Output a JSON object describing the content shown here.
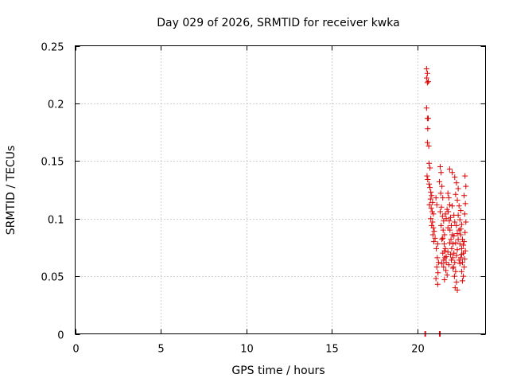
{
  "chart_data": {
    "type": "scatter",
    "title": "Day 029 of 2026, SRMTID for receiver kwka",
    "xlabel": "GPS time / hours",
    "ylabel": "SRMTID / TECUs",
    "xlim": [
      0,
      24
    ],
    "ylim": [
      0,
      0.25
    ],
    "xticks": [
      0,
      5,
      10,
      15,
      20
    ],
    "xtick_labels": [
      "0",
      "5",
      "10",
      "15",
      "20"
    ],
    "yticks": [
      0,
      0.05,
      0.1,
      0.15,
      0.2,
      0.25
    ],
    "ytick_labels": [
      "0",
      "0.05",
      "0.1",
      "0.15",
      "0.2",
      "0.25"
    ],
    "grid": true,
    "marker": "+",
    "series": [
      {
        "name": "SRMTID",
        "color": "#dd0000",
        "points": [
          [
            20.45,
            0.0
          ],
          [
            20.5,
            0.0
          ],
          [
            21.3,
            0.0
          ],
          [
            21.35,
            0.0
          ],
          [
            20.55,
            0.23
          ],
          [
            20.6,
            0.226
          ],
          [
            20.55,
            0.222
          ],
          [
            20.65,
            0.219
          ],
          [
            20.6,
            0.218
          ],
          [
            20.55,
            0.196
          ],
          [
            20.6,
            0.187
          ],
          [
            20.65,
            0.187
          ],
          [
            20.62,
            0.178
          ],
          [
            20.6,
            0.166
          ],
          [
            20.68,
            0.163
          ],
          [
            20.7,
            0.148
          ],
          [
            20.75,
            0.144
          ],
          [
            20.58,
            0.137
          ],
          [
            20.62,
            0.134
          ],
          [
            20.7,
            0.13
          ],
          [
            20.75,
            0.127
          ],
          [
            20.8,
            0.123
          ],
          [
            20.85,
            0.12
          ],
          [
            20.78,
            0.117
          ],
          [
            20.9,
            0.114
          ],
          [
            20.72,
            0.112
          ],
          [
            20.82,
            0.109
          ],
          [
            20.88,
            0.106
          ],
          [
            20.95,
            0.104
          ],
          [
            20.8,
            0.1
          ],
          [
            20.9,
            0.097
          ],
          [
            20.85,
            0.094
          ],
          [
            20.95,
            0.092
          ],
          [
            21.0,
            0.089
          ],
          [
            20.92,
            0.086
          ],
          [
            21.05,
            0.083
          ],
          [
            20.98,
            0.08
          ],
          [
            21.1,
            0.118
          ],
          [
            21.15,
            0.112
          ],
          [
            21.2,
            0.078
          ],
          [
            21.12,
            0.074
          ],
          [
            21.18,
            0.066
          ],
          [
            21.25,
            0.062
          ],
          [
            21.15,
            0.058
          ],
          [
            21.22,
            0.053
          ],
          [
            21.1,
            0.048
          ],
          [
            21.2,
            0.043
          ],
          [
            21.35,
            0.145
          ],
          [
            21.4,
            0.14
          ],
          [
            21.3,
            0.132
          ],
          [
            21.45,
            0.128
          ],
          [
            21.38,
            0.122
          ],
          [
            21.5,
            0.118
          ],
          [
            21.42,
            0.11
          ],
          [
            21.35,
            0.106
          ],
          [
            21.48,
            0.102
          ],
          [
            21.55,
            0.098
          ],
          [
            21.4,
            0.094
          ],
          [
            21.52,
            0.09
          ],
          [
            21.6,
            0.086
          ],
          [
            21.45,
            0.082
          ],
          [
            21.58,
            0.078
          ],
          [
            21.65,
            0.074
          ],
          [
            21.5,
            0.07
          ],
          [
            21.62,
            0.066
          ],
          [
            21.7,
            0.062
          ],
          [
            21.55,
            0.058
          ],
          [
            21.68,
            0.055
          ],
          [
            21.75,
            0.051
          ],
          [
            21.6,
            0.047
          ],
          [
            21.8,
            0.122
          ],
          [
            21.85,
            0.118
          ],
          [
            21.9,
            0.112
          ],
          [
            21.82,
            0.106
          ],
          [
            21.95,
            0.101
          ],
          [
            21.88,
            0.098
          ],
          [
            22.0,
            0.094
          ],
          [
            21.92,
            0.09
          ],
          [
            22.05,
            0.086
          ],
          [
            21.98,
            0.082
          ],
          [
            22.1,
            0.078
          ],
          [
            22.02,
            0.074
          ],
          [
            22.15,
            0.07
          ],
          [
            22.08,
            0.066
          ],
          [
            22.2,
            0.062
          ],
          [
            22.12,
            0.058
          ],
          [
            22.25,
            0.054
          ],
          [
            22.18,
            0.05
          ],
          [
            22.3,
            0.045
          ],
          [
            22.22,
            0.04
          ],
          [
            22.35,
            0.038
          ],
          [
            21.9,
            0.143
          ],
          [
            22.05,
            0.14
          ],
          [
            22.2,
            0.136
          ],
          [
            22.3,
            0.131
          ],
          [
            22.4,
            0.126
          ],
          [
            22.25,
            0.121
          ],
          [
            22.35,
            0.116
          ],
          [
            22.45,
            0.111
          ],
          [
            22.55,
            0.107
          ],
          [
            22.4,
            0.103
          ],
          [
            22.5,
            0.099
          ],
          [
            22.6,
            0.095
          ],
          [
            22.45,
            0.09
          ],
          [
            22.55,
            0.086
          ],
          [
            22.65,
            0.082
          ],
          [
            22.5,
            0.078
          ],
          [
            22.6,
            0.074
          ],
          [
            22.7,
            0.07
          ],
          [
            22.55,
            0.066
          ],
          [
            22.65,
            0.062
          ],
          [
            22.75,
            0.058
          ],
          [
            22.6,
            0.054
          ],
          [
            22.7,
            0.05
          ],
          [
            22.65,
            0.046
          ],
          [
            22.8,
            0.137
          ],
          [
            22.85,
            0.128
          ],
          [
            22.75,
            0.12
          ],
          [
            22.82,
            0.113
          ],
          [
            22.78,
            0.104
          ],
          [
            22.85,
            0.097
          ],
          [
            22.8,
            0.088
          ],
          [
            22.75,
            0.08
          ],
          [
            22.82,
            0.072
          ],
          [
            22.78,
            0.065
          ],
          [
            21.7,
            0.1
          ],
          [
            21.75,
            0.108
          ],
          [
            21.8,
            0.092
          ],
          [
            22.0,
            0.064
          ],
          [
            22.1,
            0.057
          ],
          [
            22.3,
            0.068
          ],
          [
            22.35,
            0.073
          ],
          [
            22.45,
            0.064
          ],
          [
            22.25,
            0.079
          ],
          [
            22.15,
            0.085
          ],
          [
            21.95,
            0.069
          ],
          [
            21.85,
            0.06
          ],
          [
            22.5,
            0.061
          ],
          [
            22.6,
            0.069
          ],
          [
            22.7,
            0.077
          ],
          [
            22.4,
            0.082
          ],
          [
            22.55,
            0.091
          ],
          [
            22.3,
            0.094
          ],
          [
            21.65,
            0.104
          ],
          [
            21.5,
            0.083
          ],
          [
            21.45,
            0.061
          ],
          [
            21.55,
            0.064
          ],
          [
            21.6,
            0.072
          ],
          [
            21.7,
            0.067
          ],
          [
            22.05,
            0.111
          ],
          [
            22.15,
            0.103
          ],
          [
            22.2,
            0.097
          ],
          [
            21.9,
            0.079
          ],
          [
            21.8,
            0.071
          ],
          [
            22.35,
            0.087
          ]
        ]
      }
    ]
  }
}
